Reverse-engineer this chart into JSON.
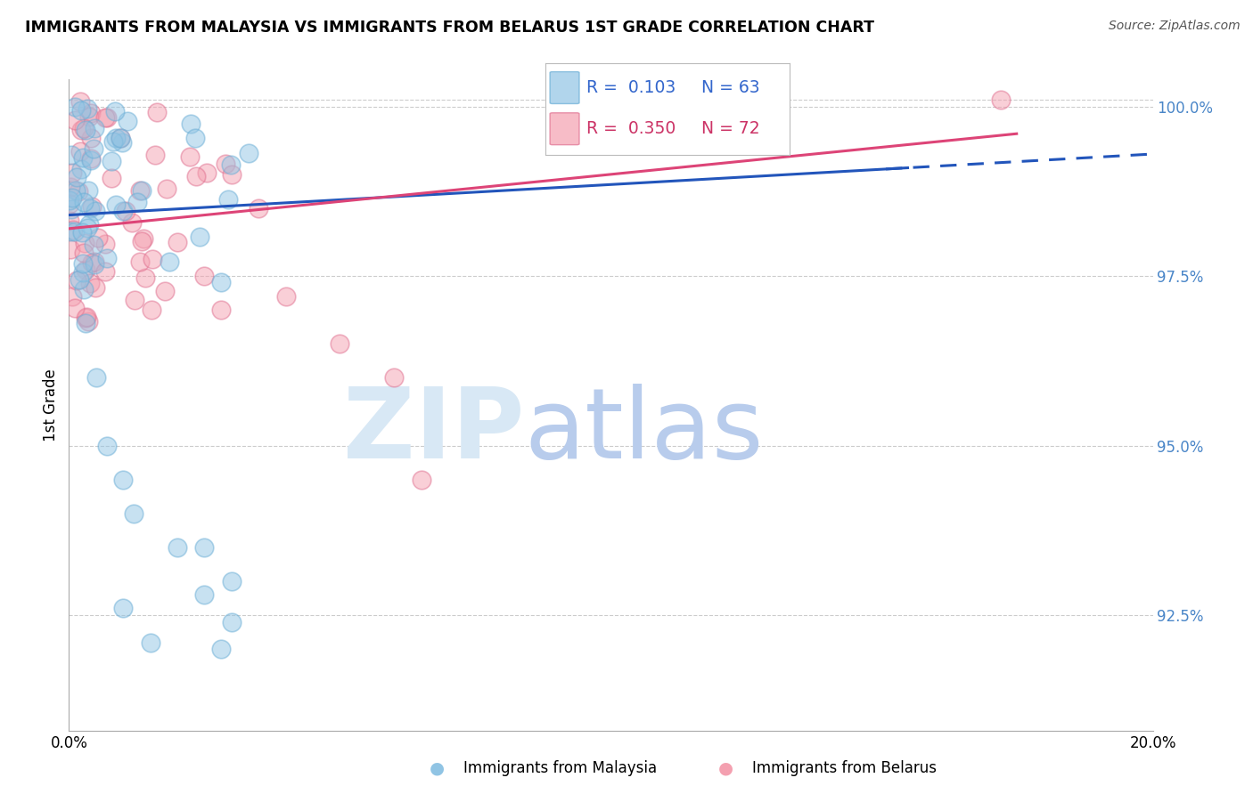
{
  "title": "IMMIGRANTS FROM MALAYSIA VS IMMIGRANTS FROM BELARUS 1ST GRADE CORRELATION CHART",
  "source": "Source: ZipAtlas.com",
  "ylabel": "1st Grade",
  "right_ytick_labels": [
    "100.0%",
    "97.5%",
    "95.0%",
    "92.5%"
  ],
  "right_ytick_vals": [
    1.0,
    0.975,
    0.95,
    0.925
  ],
  "blue_color": "#90c4e4",
  "pink_color": "#f4a0b0",
  "blue_edge_color": "#6aaed6",
  "pink_edge_color": "#e07090",
  "blue_line_color": "#2255bb",
  "pink_line_color": "#dd4477",
  "right_ytick_color": "#4a86c8",
  "watermark_zip_color": "#d8e8f5",
  "watermark_atlas_color": "#b8ccec",
  "xlim": [
    0.0,
    0.2
  ],
  "ylim": [
    0.908,
    1.004
  ],
  "legend_R1": "R =  0.103",
  "legend_N1": "N = 63",
  "legend_R2": "R =  0.350",
  "legend_N2": "N = 72",
  "legend_color1": "#3366cc",
  "legend_color2": "#cc3366",
  "figsize": [
    14.06,
    8.92
  ],
  "dpi": 100
}
